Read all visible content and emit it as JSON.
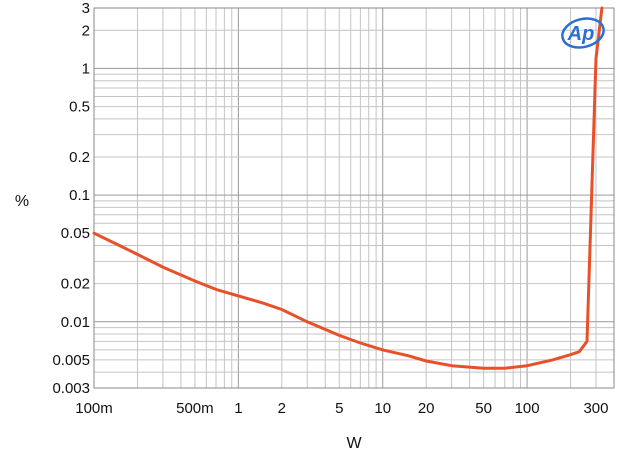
{
  "chart_data": {
    "type": "line",
    "title": "",
    "xlabel": "W",
    "ylabel": "%",
    "x_scale": "log",
    "y_scale": "log",
    "xlim": [
      0.1,
      400
    ],
    "ylim": [
      0.003,
      3
    ],
    "grid": true,
    "x_ticks": [
      {
        "value": 0.1,
        "label": "100m"
      },
      {
        "value": 0.5,
        "label": "500m"
      },
      {
        "value": 1,
        "label": "1"
      },
      {
        "value": 2,
        "label": "2"
      },
      {
        "value": 5,
        "label": "5"
      },
      {
        "value": 10,
        "label": "10"
      },
      {
        "value": 20,
        "label": "20"
      },
      {
        "value": 50,
        "label": "50"
      },
      {
        "value": 100,
        "label": "100"
      },
      {
        "value": 300,
        "label": "300"
      }
    ],
    "y_ticks": [
      {
        "value": 3,
        "label": "3"
      },
      {
        "value": 2,
        "label": "2"
      },
      {
        "value": 1,
        "label": "1"
      },
      {
        "value": 0.5,
        "label": "0.5"
      },
      {
        "value": 0.2,
        "label": "0.2"
      },
      {
        "value": 0.1,
        "label": "0.1"
      },
      {
        "value": 0.05,
        "label": "0.05"
      },
      {
        "value": 0.02,
        "label": "0.02"
      },
      {
        "value": 0.01,
        "label": "0.01"
      },
      {
        "value": 0.005,
        "label": "0.005"
      },
      {
        "value": 0.003,
        "label": "0.003"
      }
    ],
    "series": [
      {
        "color": "#e8502a",
        "x": [
          0.1,
          0.15,
          0.2,
          0.3,
          0.5,
          0.7,
          1,
          1.5,
          2,
          3,
          5,
          7,
          10,
          15,
          20,
          30,
          50,
          70,
          100,
          150,
          200,
          230,
          260,
          300,
          330
        ],
        "y": [
          0.05,
          0.04,
          0.034,
          0.027,
          0.021,
          0.018,
          0.016,
          0.014,
          0.0125,
          0.01,
          0.0078,
          0.0068,
          0.006,
          0.0054,
          0.0049,
          0.0045,
          0.0043,
          0.0043,
          0.0045,
          0.005,
          0.0055,
          0.0058,
          0.007,
          1.2,
          3
        ]
      }
    ],
    "logo": {
      "text": "Ap",
      "color": "#2a6fd1"
    }
  }
}
